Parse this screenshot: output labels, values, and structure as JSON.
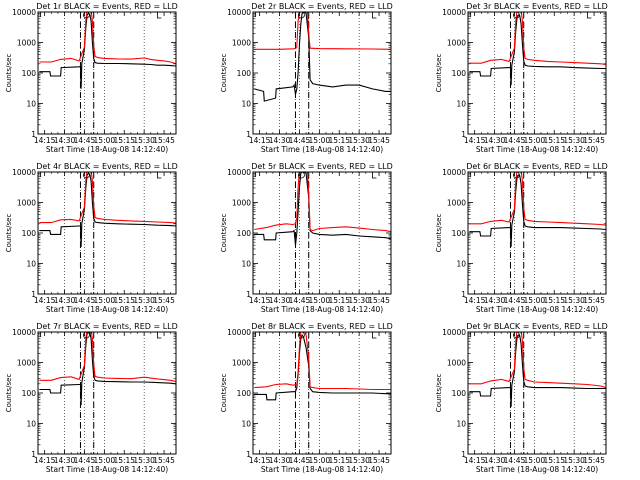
{
  "chart_data": {
    "type": "line",
    "layout": "3x3 grid of small multiples",
    "x_tick_labels": [
      "14:15",
      "14:30",
      "14:45",
      "15:00",
      "15:15",
      "15:30",
      "15:45"
    ],
    "x_ticks_minutes": [
      15,
      30,
      45,
      60,
      75,
      90,
      105
    ],
    "xlim_minutes": [
      10,
      114
    ],
    "xlabel": "Start Time (18-Aug-08 14:12:40)",
    "ylabel": "Counts/sec",
    "y_scale": "log",
    "ylim": [
      1,
      10000
    ],
    "y_tick_labels": [
      "1",
      "10",
      "100",
      "1000",
      "10000"
    ],
    "y_ticks": [
      1,
      10,
      100,
      1000,
      10000
    ],
    "grid": "dotted vertical lines at 14:30, 15:00 and 15:30",
    "vertical_markers_minutes": {
      "dashed": [
        42,
        52
      ],
      "dotted": [
        42,
        45,
        52
      ]
    },
    "colors": {
      "events": "#000000",
      "lld": "#ff0000",
      "axes": "#000000"
    },
    "series_names": [
      "Events",
      "LLD"
    ],
    "panels": [
      {
        "title": "Det 1r BLACK = Events, RED = LLD",
        "series": [
          {
            "name": "Events",
            "x": [
              11,
              19,
              19.5,
              27,
              27.5,
              41,
              42,
              42.5,
              43,
              45,
              46,
              47,
              48,
              49,
              50,
              51,
              52,
              53,
              55,
              60,
              70,
              80,
              90,
              95,
              100,
              105,
              110,
              114
            ],
            "y": [
              110,
              110,
              80,
              80,
              150,
              160,
              165,
              30,
              200,
              600,
              3000,
              8000,
              9000,
              8500,
              5000,
              1000,
              300,
              220,
              210,
              205,
              205,
              200,
              195,
              190,
              180,
              180,
              175,
              170
            ]
          },
          {
            "name": "LLD",
            "x": [
              11,
              20,
              27,
              35,
              41,
              45,
              46,
              47,
              50,
              51,
              52,
              53,
              55,
              60,
              70,
              80,
              90,
              95,
              100,
              105,
              110,
              114
            ],
            "y": [
              230,
              230,
              280,
              300,
              250,
              700,
              5000,
              12000,
              12000,
              5000,
              800,
              350,
              320,
              300,
              290,
              285,
              310,
              280,
              260,
              250,
              230,
              200
            ]
          }
        ]
      },
      {
        "title": "Det 2r BLACK = Events, RED = LLD",
        "series": [
          {
            "name": "Events",
            "x": [
              11,
              18,
              18.5,
              27,
              27.5,
              40,
              41,
              42,
              43,
              44,
              45,
              46,
              47,
              48,
              50,
              52,
              53,
              55,
              60,
              70,
              80,
              90,
              100,
              110,
              114
            ],
            "y": [
              30,
              25,
              12,
              15,
              30,
              35,
              40,
              20,
              30,
              100,
              800,
              4000,
              9000,
              10000,
              9000,
              1500,
              60,
              45,
              40,
              35,
              40,
              40,
              30,
              25,
              25
            ]
          },
          {
            "name": "LLD",
            "x": [
              11,
              30,
              40,
              42,
              43,
              44,
              45,
              46,
              50,
              51,
              52,
              53,
              60,
              80,
              100,
              114
            ],
            "y": [
              600,
              600,
              620,
              630,
              700,
              5000,
              12000,
              12000,
              12000,
              12000,
              2000,
              650,
              630,
              620,
              610,
              600
            ]
          }
        ]
      },
      {
        "title": "Det 3r BLACK = Events, RED = LLD",
        "series": [
          {
            "name": "Events",
            "x": [
              11,
              19,
              19.5,
              27,
              27.5,
              41,
              42,
              42.5,
              43,
              45,
              46,
              47,
              48,
              49,
              50,
              51,
              52,
              53,
              55,
              60,
              70,
              80,
              90,
              100,
              110,
              114
            ],
            "y": [
              110,
              110,
              80,
              80,
              140,
              150,
              150,
              40,
              180,
              500,
              2500,
              7000,
              8000,
              7500,
              4000,
              900,
              250,
              180,
              170,
              165,
              160,
              160,
              150,
              145,
              140,
              140
            ]
          },
          {
            "name": "LLD",
            "x": [
              11,
              20,
              27,
              35,
              41,
              45,
              46,
              47,
              50,
              51,
              52,
              53,
              55,
              60,
              70,
              80,
              90,
              100,
              110,
              114
            ],
            "y": [
              210,
              210,
              260,
              280,
              240,
              650,
              5000,
              12000,
              12000,
              5000,
              700,
              300,
              280,
              260,
              240,
              230,
              220,
              210,
              200,
              190
            ]
          }
        ]
      },
      {
        "title": "Det 4r BLACK = Events, RED = LLD",
        "series": [
          {
            "name": "Events",
            "x": [
              11,
              19,
              19.5,
              27,
              27.5,
              41,
              42,
              42.5,
              43,
              45,
              46,
              47,
              48,
              49,
              50,
              51,
              52,
              53,
              55,
              60,
              70,
              80,
              90,
              100,
              110,
              114
            ],
            "y": [
              120,
              120,
              90,
              90,
              160,
              170,
              170,
              35,
              200,
              600,
              3000,
              8000,
              9000,
              8500,
              5000,
              1000,
              300,
              230,
              220,
              210,
              200,
              195,
              190,
              180,
              175,
              170
            ]
          },
          {
            "name": "LLD",
            "x": [
              11,
              20,
              27,
              35,
              41,
              45,
              46,
              47,
              50,
              51,
              52,
              53,
              55,
              60,
              70,
              80,
              90,
              100,
              110,
              114
            ],
            "y": [
              220,
              220,
              270,
              280,
              250,
              700,
              5000,
              12000,
              12000,
              5000,
              800,
              320,
              300,
              280,
              260,
              250,
              240,
              230,
              220,
              210
            ]
          }
        ]
      },
      {
        "title": "Det 5r BLACK = Events, RED = LLD",
        "series": [
          {
            "name": "Events",
            "x": [
              11,
              18,
              18.5,
              27,
              27.5,
              40,
              41,
              42,
              43,
              44,
              45,
              46,
              47,
              48,
              50,
              52,
              53,
              55,
              60,
              70,
              80,
              90,
              100,
              110,
              114
            ],
            "y": [
              90,
              90,
              60,
              60,
              100,
              110,
              120,
              40,
              100,
              500,
              3000,
              9000,
              10000,
              10000,
              9000,
              1500,
              120,
              100,
              90,
              85,
              90,
              80,
              75,
              70,
              65
            ]
          },
          {
            "name": "LLD",
            "x": [
              11,
              20,
              27,
              35,
              40,
              42,
              43,
              44,
              45,
              46,
              50,
              51,
              52,
              53,
              55,
              60,
              70,
              80,
              90,
              100,
              110,
              114
            ],
            "y": [
              130,
              150,
              180,
              200,
              190,
              200,
              300,
              3000,
              12000,
              12000,
              12000,
              12000,
              2000,
              130,
              120,
              140,
              150,
              160,
              145,
              130,
              120,
              110
            ]
          }
        ]
      },
      {
        "title": "Det 6r BLACK = Events, RED = LLD",
        "series": [
          {
            "name": "Events",
            "x": [
              11,
              19,
              19.5,
              27,
              27.5,
              41,
              42,
              42.5,
              43,
              45,
              46,
              47,
              48,
              49,
              50,
              51,
              52,
              53,
              55,
              60,
              70,
              80,
              90,
              100,
              110,
              114
            ],
            "y": [
              110,
              110,
              80,
              80,
              140,
              150,
              150,
              35,
              180,
              500,
              2500,
              7000,
              8000,
              7500,
              4000,
              900,
              250,
              170,
              160,
              150,
              150,
              150,
              145,
              140,
              135,
              130
            ]
          },
          {
            "name": "LLD",
            "x": [
              11,
              20,
              27,
              35,
              41,
              45,
              46,
              47,
              50,
              51,
              52,
              53,
              55,
              60,
              70,
              80,
              90,
              100,
              110,
              114
            ],
            "y": [
              200,
              200,
              240,
              260,
              230,
              600,
              5000,
              12000,
              12000,
              5000,
              700,
              280,
              260,
              240,
              230,
              220,
              210,
              200,
              190,
              180
            ]
          }
        ]
      },
      {
        "title": "Det 7r BLACK = Events, RED = LLD",
        "series": [
          {
            "name": "Events",
            "x": [
              11,
              19,
              19.5,
              27,
              27.5,
              41,
              42,
              42.5,
              43,
              45,
              46,
              47,
              48,
              49,
              50,
              51,
              52,
              53,
              55,
              60,
              70,
              80,
              90,
              100,
              110,
              114
            ],
            "y": [
              130,
              130,
              100,
              100,
              180,
              190,
              190,
              40,
              220,
              700,
              3500,
              9000,
              10000,
              9500,
              6000,
              1200,
              350,
              260,
              250,
              240,
              235,
              230,
              230,
              220,
              210,
              200
            ]
          },
          {
            "name": "LLD",
            "x": [
              11,
              20,
              27,
              35,
              41,
              45,
              46,
              47,
              50,
              51,
              52,
              53,
              55,
              60,
              70,
              80,
              90,
              100,
              110,
              114
            ],
            "y": [
              260,
              260,
              320,
              340,
              280,
              800,
              6000,
              12000,
              12000,
              6000,
              900,
              350,
              330,
              310,
              300,
              295,
              330,
              290,
              260,
              240
            ]
          }
        ]
      },
      {
        "title": "Det 8r BLACK = Events, RED = LLD",
        "series": [
          {
            "name": "Events",
            "x": [
              11,
              20,
              20.5,
              27,
              27.5,
              40,
              41,
              42,
              43,
              44,
              45,
              46,
              47,
              48,
              50,
              52,
              53,
              55,
              60,
              70,
              80,
              90,
              100,
              110,
              114
            ],
            "y": [
              90,
              90,
              60,
              60,
              100,
              110,
              110,
              110,
              150,
              400,
              2000,
              6000,
              8000,
              7000,
              3000,
              800,
              140,
              110,
              105,
              100,
              100,
              100,
              100,
              95,
              95
            ]
          },
          {
            "name": "LLD",
            "x": [
              11,
              20,
              27,
              35,
              40,
              43,
              44,
              45,
              46,
              47,
              48,
              50,
              52,
              53,
              55,
              60,
              70,
              80,
              90,
              100,
              110,
              114
            ],
            "y": [
              150,
              160,
              190,
              200,
              180,
              190,
              500,
              3000,
              10000,
              12000,
              12000,
              8000,
              1500,
              160,
              150,
              140,
              140,
              140,
              135,
              130,
              130,
              130
            ]
          }
        ]
      },
      {
        "title": "Det 9r BLACK = Events, RED = LLD",
        "series": [
          {
            "name": "Events",
            "x": [
              11,
              19,
              19.5,
              27,
              27.5,
              41,
              42,
              42.5,
              43,
              45,
              46,
              47,
              48,
              49,
              50,
              51,
              52,
              53,
              55,
              60,
              70,
              80,
              90,
              100,
              110,
              114
            ],
            "y": [
              110,
              110,
              80,
              80,
              140,
              150,
              150,
              35,
              180,
              500,
              2500,
              7000,
              8000,
              7500,
              4000,
              900,
              250,
              170,
              160,
              150,
              150,
              150,
              145,
              140,
              140,
              140
            ]
          },
          {
            "name": "LLD",
            "x": [
              11,
              20,
              27,
              35,
              41,
              45,
              46,
              47,
              50,
              51,
              52,
              53,
              55,
              60,
              70,
              80,
              90,
              100,
              110,
              114
            ],
            "y": [
              200,
              200,
              250,
              280,
              240,
              600,
              5000,
              12000,
              12000,
              5000,
              700,
              280,
              260,
              230,
              220,
              210,
              200,
              190,
              170,
              150
            ]
          }
        ]
      }
    ]
  }
}
